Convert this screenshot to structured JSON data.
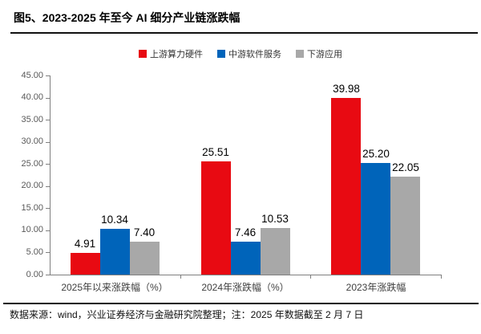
{
  "header": {
    "title": "图5、2023-2025 年至今 AI 细分产业链涨跌幅"
  },
  "footer": {
    "text": "数据来源：wind，兴业证券经济与金融研究院整理；注：2025 年数据截至 2 月 7 日"
  },
  "chart_data": {
    "type": "bar",
    "title": "2023-2025 年至今 AI 细分产业链涨跌幅",
    "categories": [
      "2025年以来涨跌幅（%）",
      "2024年涨跌幅（%）",
      "2023年涨跌幅"
    ],
    "series": [
      {
        "name": "上游算力硬件",
        "color": "#e80a12",
        "values": [
          4.91,
          25.51,
          39.98
        ],
        "labels": [
          "4.91",
          "25.51",
          "39.98"
        ]
      },
      {
        "name": "中游软件服务",
        "color": "#0064ba",
        "values": [
          10.34,
          7.46,
          25.2
        ],
        "labels": [
          "10.34",
          "7.46",
          "25.20"
        ]
      },
      {
        "name": "下游应用",
        "color": "#a8a8a8",
        "values": [
          7.4,
          10.53,
          22.05
        ],
        "labels": [
          "7.40",
          "10.53",
          "22.05"
        ]
      }
    ],
    "xlabel": "",
    "ylabel": "",
    "ylim": [
      0,
      45
    ],
    "ytick_labels": [
      "0.00",
      "5.00",
      "10.00",
      "15.00",
      "20.00",
      "25.00",
      "30.00",
      "35.00",
      "40.00",
      "45.00"
    ],
    "grid": false,
    "legend_position": "top"
  }
}
